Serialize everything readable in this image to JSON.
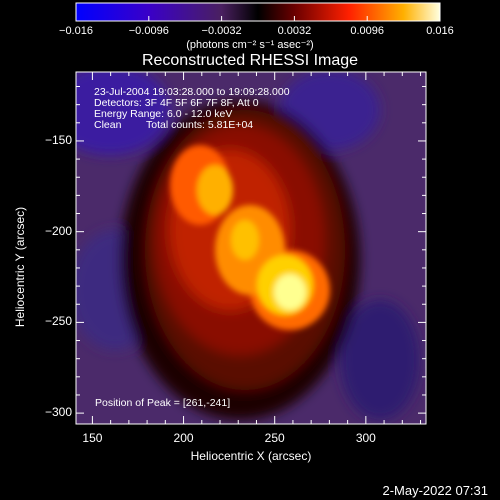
{
  "chart_data": {
    "type": "heatmap",
    "title": "Reconstructed RHESSI Image",
    "xlabel": "Heliocentric X (arcsec)",
    "ylabel": "Heliocentric Y (arcsec)",
    "xlim": [
      141,
      333
    ],
    "ylim": [
      -306,
      -112
    ],
    "xticks": [
      150,
      200,
      250,
      300
    ],
    "yticks": [
      -150,
      -200,
      -250,
      -300
    ],
    "colorbar": {
      "range": [
        -0.016,
        0.016
      ],
      "ticks": [
        "−0.016",
        "−0.0096",
        "−0.0032",
        "0.0032",
        "0.0096",
        "0.016"
      ],
      "unit_label": "(photons cm⁻² s⁻¹ asec⁻²)"
    },
    "annotations": {
      "time_range": "23-Jul-2004 19:03:28.000 to 19:09:28.000",
      "detectors": "Detectors: 3F 4F 5F 6F 7F 8F, Att 0",
      "energy": "Energy Range: 6.0 - 12.0 keV",
      "method": "Clean",
      "counts": "Total counts: 5.81E+04",
      "peak": "Position of Peak = [261,-241]"
    },
    "peak": {
      "x": 261,
      "y": -241
    },
    "timestamp": "2-May-2022 07:31"
  }
}
